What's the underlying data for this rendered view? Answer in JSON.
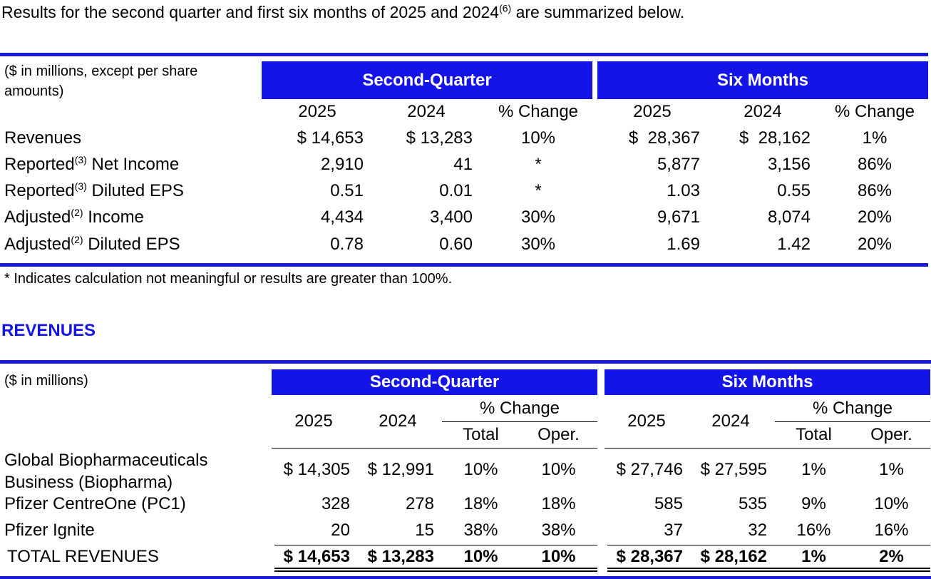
{
  "intro": {
    "text_before": "Results for the second quarter and first six months of 2025 and 2024",
    "sup": "(6)",
    "text_after": " are summarized below."
  },
  "summary": {
    "units": "($ in millions, except per share amounts)",
    "group_q": "Second-Quarter",
    "group_s": "Six Months",
    "cols": [
      "2025",
      "2024",
      "% Change",
      "2025",
      "2024",
      "% Change"
    ],
    "rows": [
      {
        "pre": "Revenues",
        "sup": "",
        "post": "",
        "v": [
          "$ 14,653",
          "$ 13,283",
          "10%",
          "$  28,367",
          "$  28,162",
          "1%"
        ]
      },
      {
        "pre": "Reported",
        "sup": "(3)",
        "post": " Net Income",
        "v": [
          "2,910",
          "41",
          "*",
          "5,877",
          "3,156",
          "86%"
        ]
      },
      {
        "pre": "Reported",
        "sup": "(3)",
        "post": " Diluted EPS",
        "v": [
          "0.51",
          "0.01",
          "*",
          "1.03",
          "0.55",
          "86%"
        ]
      },
      {
        "pre": "Adjusted",
        "sup": "(2)",
        "post": " Income",
        "v": [
          "4,434",
          "3,400",
          "30%",
          "9,671",
          "8,074",
          "20%"
        ]
      },
      {
        "pre": "Adjusted",
        "sup": "(2)",
        "post": " Diluted EPS",
        "v": [
          "0.78",
          "0.60",
          "30%",
          "1.69",
          "1.42",
          "20%"
        ]
      }
    ],
    "footnote": "* Indicates calculation not meaningful or results are greater than 100%."
  },
  "revenues_title": "REVENUES",
  "revenues": {
    "units": "($ in millions)",
    "group_q": "Second-Quarter",
    "group_s": "Six Months",
    "y1": "2025",
    "y2": "2024",
    "pct": "% Change",
    "total": "Total",
    "oper": "Oper.",
    "rows": [
      {
        "label1": "Global Biopharmaceuticals",
        "label2": "Business (Biopharma)",
        "v": [
          "$ 14,305",
          "$ 12,991",
          "10%",
          "10%",
          "$ 27,746",
          "$ 27,595",
          "1%",
          "1%"
        ]
      },
      {
        "label1": "Pfizer CentreOne (PC1)",
        "label2": "",
        "v": [
          "328",
          "278",
          "18%",
          "18%",
          "585",
          "535",
          "9%",
          "10%"
        ]
      },
      {
        "label1": "Pfizer Ignite",
        "label2": "",
        "v": [
          "20",
          "15",
          "38%",
          "38%",
          "37",
          "32",
          "16%",
          "16%"
        ]
      }
    ],
    "total_row": {
      "label": "TOTAL REVENUES",
      "v": [
        "$ 14,653",
        "$ 13,283",
        "10%",
        "10%",
        "$ 28,367",
        "$ 28,162",
        "1%",
        "2%"
      ]
    }
  }
}
